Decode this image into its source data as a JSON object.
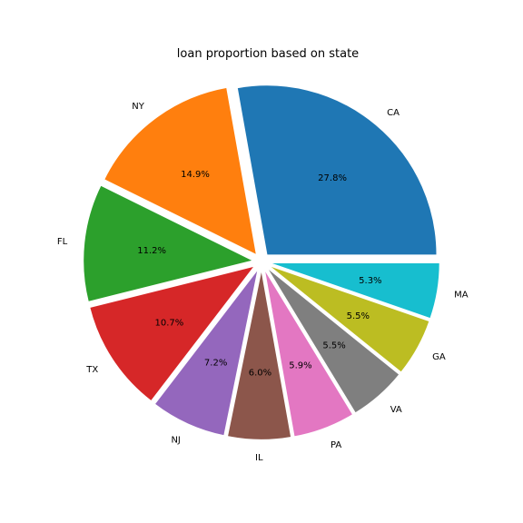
{
  "chart_data": {
    "type": "pie",
    "title": "loan proportion based on state",
    "labels": [
      "CA",
      "NY",
      "FL",
      "TX",
      "NJ",
      "IL",
      "PA",
      "VA",
      "GA",
      "MA"
    ],
    "values": [
      27.8,
      14.9,
      11.2,
      10.7,
      7.2,
      6.0,
      5.9,
      5.5,
      5.5,
      5.3
    ],
    "pct_labels": [
      "27.8%",
      "14.9%",
      "11.2%",
      "10.7%",
      "7.2%",
      "6.0%",
      "5.9%",
      "5.5%",
      "5.5%",
      "5.3%"
    ],
    "colors": [
      "#1f77b4",
      "#ff7f0e",
      "#2ca02c",
      "#d62728",
      "#9467bd",
      "#8c564b",
      "#e377c2",
      "#7f7f7f",
      "#bcbd22",
      "#17becf"
    ],
    "start_angle_deg": 0,
    "direction": "counterclockwise",
    "exploded": true,
    "legend": "none"
  }
}
